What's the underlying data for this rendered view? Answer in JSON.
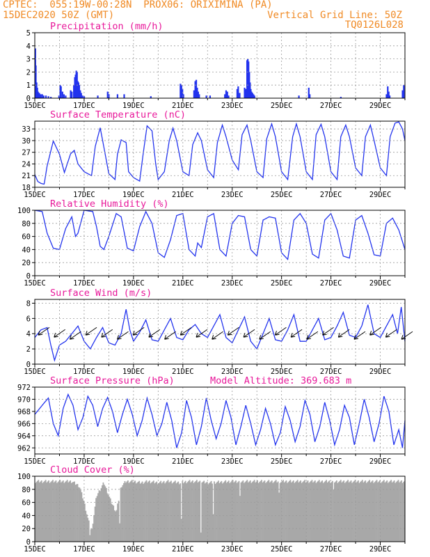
{
  "header": {
    "line1_left": "CPTEC:  055:19W-00:28N  PROX06: ORIXIMINA (PA)",
    "line2_left": "15DEC2020 50Z (GMT)",
    "line2_right": "Vertical Grid Line: 50Z",
    "line3_right": "TQ0126L028"
  },
  "colors": {
    "header": "#f08a24",
    "title": "#e8189a",
    "line": "#2233ee",
    "bar": "#2233ee",
    "cloud": "#a8a8a8",
    "grid": "#9a9a9a"
  },
  "chart_data": [
    {
      "id": "precip",
      "type": "bar",
      "title": "Precipitation (mm/h)",
      "ylim": [
        0,
        5
      ],
      "yticks": [
        "0",
        "1",
        "2",
        "3",
        "4",
        "5"
      ],
      "xticks": [
        "15DEC",
        "17DEC",
        "19DEC",
        "21DEC",
        "23DEC",
        "25DEC",
        "27DEC",
        "29DEC"
      ],
      "x_range_days": [
        0,
        15
      ],
      "events": [
        [
          0.02,
          3.8
        ],
        [
          0.04,
          2.5
        ],
        [
          0.07,
          1.2
        ],
        [
          0.1,
          0.8
        ],
        [
          0.13,
          0.5
        ],
        [
          0.18,
          0.4
        ],
        [
          0.24,
          0.3
        ],
        [
          0.3,
          0.3
        ],
        [
          0.36,
          0.2
        ],
        [
          0.45,
          0.2
        ],
        [
          0.55,
          0.15
        ],
        [
          0.65,
          0.1
        ],
        [
          0.98,
          0.2
        ],
        [
          1.03,
          1.0
        ],
        [
          1.06,
          0.9
        ],
        [
          1.12,
          0.5
        ],
        [
          1.18,
          0.3
        ],
        [
          1.25,
          0.2
        ],
        [
          1.45,
          0.6
        ],
        [
          1.5,
          0.5
        ],
        [
          1.58,
          1.0
        ],
        [
          1.62,
          1.6
        ],
        [
          1.65,
          1.8
        ],
        [
          1.68,
          2.1
        ],
        [
          1.71,
          2.0
        ],
        [
          1.74,
          1.3
        ],
        [
          1.77,
          1.2
        ],
        [
          1.8,
          1.0
        ],
        [
          1.84,
          0.6
        ],
        [
          1.88,
          0.4
        ],
        [
          1.93,
          0.2
        ],
        [
          2.0,
          0.15
        ],
        [
          2.55,
          0.2
        ],
        [
          2.95,
          0.5
        ],
        [
          3.0,
          0.3
        ],
        [
          3.35,
          0.3
        ],
        [
          3.62,
          0.3
        ],
        [
          4.7,
          0.15
        ],
        [
          5.9,
          1.1
        ],
        [
          5.94,
          1.0
        ],
        [
          5.98,
          0.7
        ],
        [
          6.02,
          0.3
        ],
        [
          6.45,
          0.6
        ],
        [
          6.5,
          1.3
        ],
        [
          6.54,
          1.4
        ],
        [
          6.58,
          0.8
        ],
        [
          6.62,
          0.5
        ],
        [
          6.66,
          0.3
        ],
        [
          6.95,
          0.2
        ],
        [
          7.1,
          0.2
        ],
        [
          7.7,
          0.3
        ],
        [
          7.75,
          0.6
        ],
        [
          7.8,
          0.5
        ],
        [
          7.85,
          0.2
        ],
        [
          8.2,
          0.7
        ],
        [
          8.24,
          0.9
        ],
        [
          8.3,
          0.4
        ],
        [
          8.5,
          0.8
        ],
        [
          8.55,
          0.7
        ],
        [
          8.6,
          2.9
        ],
        [
          8.63,
          3.0
        ],
        [
          8.66,
          2.8
        ],
        [
          8.69,
          2.0
        ],
        [
          8.72,
          1.2
        ],
        [
          8.75,
          0.7
        ],
        [
          8.78,
          0.5
        ],
        [
          8.82,
          0.4
        ],
        [
          8.86,
          0.3
        ],
        [
          8.9,
          0.2
        ],
        [
          10.7,
          0.2
        ],
        [
          11.1,
          0.8
        ],
        [
          11.14,
          0.3
        ],
        [
          12.4,
          0.1
        ],
        [
          14.25,
          0.3
        ],
        [
          14.3,
          0.9
        ],
        [
          14.34,
          0.5
        ],
        [
          14.38,
          0.2
        ],
        [
          14.9,
          0.6
        ],
        [
          14.95,
          1.0
        ]
      ]
    },
    {
      "id": "temp",
      "type": "line",
      "title": "Surface Temperature (nC)",
      "ylim": [
        18,
        35
      ],
      "yticks": [
        "18",
        "21",
        "24",
        "27",
        "30",
        "33"
      ],
      "xticks": [
        "15DEC",
        "17DEC",
        "19DEC",
        "21DEC",
        "23DEC",
        "25DEC",
        "27DEC",
        "29DEC"
      ],
      "x_range_days": [
        0,
        15
      ],
      "series": [
        {
          "t": [
            0,
            0.12,
            0.25,
            0.38,
            0.5,
            0.75,
            1.0,
            1.2,
            1.45,
            1.6,
            1.75,
            2.0,
            2.3,
            2.45,
            2.65,
            2.75,
            3.0,
            3.25,
            3.35,
            3.5,
            3.7,
            3.8,
            4.0,
            4.25,
            4.4,
            4.55,
            4.75,
            4.9,
            5.0,
            5.25,
            5.45,
            5.6,
            5.75,
            6.0,
            6.25,
            6.4,
            6.6,
            6.75,
            7.0,
            7.25,
            7.4,
            7.6,
            7.75,
            8.0,
            8.25,
            8.4,
            8.6,
            8.75,
            9.0,
            9.25,
            9.4,
            9.6,
            9.75,
            10.0,
            10.25,
            10.45,
            10.6,
            10.75,
            11.0,
            11.25,
            11.4,
            11.6,
            11.75,
            12.0,
            12.25,
            12.4,
            12.6,
            12.75,
            13.0,
            13.25,
            13.4,
            13.6,
            13.75,
            14.0,
            14.25,
            14.4,
            14.6,
            14.75,
            14.9,
            15.0
          ],
          "values": [
            21.3,
            19.5,
            19.0,
            18.8,
            23.5,
            29.9,
            26.5,
            21.8,
            26.6,
            27.5,
            24.0,
            22.0,
            21.0,
            28.5,
            33.3,
            30.0,
            21.5,
            20.0,
            26.5,
            30.2,
            29.5,
            22.0,
            20.5,
            19.6,
            27.0,
            33.8,
            32.5,
            24.0,
            20.0,
            22.0,
            30.0,
            33.2,
            30.0,
            22.0,
            21.0,
            29.0,
            32.0,
            30.0,
            22.5,
            20.5,
            29.5,
            34.0,
            31.0,
            25.0,
            22.5,
            31.5,
            34.0,
            30.0,
            22.0,
            20.5,
            30.5,
            34.3,
            31.0,
            22.0,
            20.0,
            31.0,
            34.3,
            31.0,
            22.0,
            20.0,
            31.5,
            34.2,
            31.0,
            22.0,
            20.0,
            31.0,
            34.0,
            31.0,
            23.0,
            21.0,
            31.0,
            34.0,
            30.0,
            23.0,
            21.0,
            31.0,
            34.5,
            34.8,
            33.0,
            30.0
          ]
        }
      ]
    },
    {
      "id": "humidity",
      "type": "line",
      "title": "Relative Humidity (%)",
      "ylim": [
        0,
        100
      ],
      "yticks": [
        "0",
        "20",
        "40",
        "60",
        "80",
        "100"
      ],
      "xticks": [
        "15DEC",
        "17DEC",
        "19DEC",
        "21DEC",
        "23DEC",
        "25DEC",
        "27DEC",
        "29DEC"
      ],
      "x_range_days": [
        0,
        15
      ],
      "series": [
        {
          "t": [
            0,
            0.3,
            0.5,
            0.75,
            1.0,
            1.25,
            1.5,
            1.65,
            1.75,
            2.0,
            2.35,
            2.5,
            2.65,
            2.8,
            3.0,
            3.3,
            3.5,
            3.75,
            4.0,
            4.25,
            4.5,
            4.75,
            5.0,
            5.25,
            5.5,
            5.75,
            6.0,
            6.25,
            6.5,
            6.6,
            6.75,
            7.0,
            7.25,
            7.5,
            7.75,
            8.0,
            8.25,
            8.5,
            8.75,
            9.0,
            9.25,
            9.5,
            9.75,
            10.0,
            10.25,
            10.5,
            10.75,
            11.0,
            11.25,
            11.5,
            11.75,
            12.0,
            12.25,
            12.5,
            12.75,
            13.0,
            13.25,
            13.5,
            13.75,
            14.0,
            14.25,
            14.5,
            14.75,
            15.0
          ],
          "values": [
            100,
            98,
            65,
            42,
            40,
            72,
            90,
            60,
            65,
            100,
            98,
            75,
            45,
            40,
            60,
            95,
            90,
            42,
            38,
            75,
            98,
            80,
            35,
            28,
            55,
            92,
            95,
            40,
            30,
            50,
            43,
            90,
            95,
            40,
            30,
            80,
            92,
            90,
            40,
            30,
            85,
            90,
            88,
            35,
            25,
            85,
            95,
            80,
            33,
            27,
            85,
            95,
            70,
            30,
            27,
            85,
            92,
            65,
            32,
            30,
            80,
            88,
            70,
            40
          ]
        }
      ]
    },
    {
      "id": "wind",
      "type": "line",
      "title": "Surface Wind (m/s)",
      "ylim": [
        0,
        8.5
      ],
      "yticks": [
        "0",
        "2",
        "4",
        "6",
        "8"
      ],
      "xticks": [
        "15DEC",
        "17DEC",
        "19DEC",
        "21DEC",
        "23DEC",
        "25DEC",
        "27DEC",
        "29DEC"
      ],
      "x_range_days": [
        0,
        15
      ],
      "arrow_y": 4,
      "arrow_count": 24,
      "series": [
        {
          "t": [
            0,
            0.25,
            0.5,
            0.65,
            0.8,
            1.0,
            1.25,
            1.5,
            1.75,
            2.0,
            2.25,
            2.5,
            2.75,
            3.0,
            3.25,
            3.5,
            3.7,
            3.85,
            4.0,
            4.25,
            4.5,
            4.75,
            5.0,
            5.25,
            5.5,
            5.75,
            6.0,
            6.25,
            6.5,
            6.75,
            7.0,
            7.25,
            7.5,
            7.75,
            8.0,
            8.25,
            8.5,
            8.75,
            9.0,
            9.25,
            9.5,
            9.75,
            10.0,
            10.25,
            10.5,
            10.75,
            11.0,
            11.25,
            11.5,
            11.75,
            12.0,
            12.25,
            12.5,
            12.75,
            13.0,
            13.25,
            13.5,
            13.75,
            14.0,
            14.25,
            14.5,
            14.7,
            14.85,
            15.0
          ],
          "values": [
            3.5,
            4.5,
            4.8,
            2.5,
            0.5,
            2.5,
            3.0,
            4.0,
            5.0,
            3.0,
            2.0,
            3.5,
            4.8,
            2.8,
            2.5,
            4.0,
            7.2,
            4.5,
            3.0,
            4.2,
            5.8,
            3.2,
            3.0,
            4.5,
            6.0,
            3.5,
            3.2,
            4.5,
            5.2,
            4.0,
            3.5,
            5.0,
            6.5,
            3.5,
            2.8,
            4.5,
            6.2,
            3.0,
            2.0,
            4.0,
            6.0,
            3.2,
            3.0,
            4.5,
            6.5,
            3.0,
            3.0,
            4.5,
            6.0,
            3.2,
            3.5,
            5.0,
            6.8,
            3.8,
            3.5,
            5.0,
            7.8,
            4.0,
            3.5,
            5.0,
            6.5,
            4.0,
            7.5,
            3.0
          ]
        }
      ]
    },
    {
      "id": "pressure",
      "type": "line",
      "title": "Surface Pressure (hPa)",
      "annotation": "Model Altitude: 369.683 m",
      "ylim": [
        961,
        972
      ],
      "yticks": [
        "962",
        "964",
        "966",
        "968",
        "970",
        "972"
      ],
      "xticks": [
        "15DEC",
        "17DEC",
        "19DEC",
        "21DEC",
        "23DEC",
        "25DEC",
        "27DEC",
        "29DEC"
      ],
      "x_range_days": [
        0,
        15
      ],
      "series": [
        {
          "t": [
            0,
            0.2,
            0.4,
            0.55,
            0.75,
            0.95,
            1.15,
            1.35,
            1.55,
            1.75,
            1.95,
            2.15,
            2.35,
            2.55,
            2.75,
            2.95,
            3.15,
            3.35,
            3.55,
            3.75,
            3.95,
            4.15,
            4.35,
            4.55,
            4.75,
            4.95,
            5.15,
            5.35,
            5.55,
            5.75,
            5.95,
            6.15,
            6.35,
            6.55,
            6.75,
            6.95,
            7.15,
            7.35,
            7.55,
            7.75,
            7.95,
            8.15,
            8.35,
            8.55,
            8.75,
            8.95,
            9.15,
            9.35,
            9.55,
            9.75,
            9.95,
            10.15,
            10.35,
            10.55,
            10.75,
            10.95,
            11.15,
            11.35,
            11.55,
            11.75,
            11.95,
            12.15,
            12.35,
            12.55,
            12.75,
            12.95,
            13.15,
            13.35,
            13.55,
            13.75,
            13.95,
            14.15,
            14.35,
            14.55,
            14.75,
            14.9,
            15.0
          ],
          "values": [
            967.5,
            968.5,
            969.5,
            970.2,
            966.0,
            964.0,
            968.5,
            970.8,
            969.0,
            965.0,
            967.0,
            970.5,
            969.0,
            965.5,
            968.5,
            970.3,
            968.0,
            964.5,
            967.5,
            970.0,
            967.5,
            964.0,
            966.5,
            970.2,
            967.5,
            964.0,
            966.0,
            969.5,
            966.5,
            962.0,
            964.5,
            969.8,
            967.0,
            962.5,
            965.5,
            970.2,
            966.5,
            963.5,
            966.0,
            969.8,
            967.0,
            962.5,
            965.5,
            969.0,
            966.0,
            962.5,
            965.0,
            968.5,
            966.0,
            962.5,
            964.5,
            968.8,
            966.5,
            963.0,
            965.5,
            969.8,
            967.5,
            963.0,
            965.5,
            969.5,
            966.5,
            962.5,
            965.0,
            969.0,
            967.0,
            962.5,
            966.0,
            970.0,
            967.0,
            963.0,
            966.0,
            970.5,
            968.0,
            962.5,
            965.0,
            962.0,
            966.5
          ]
        }
      ]
    },
    {
      "id": "cloud",
      "type": "area",
      "title": "Cloud Cover (%)",
      "ylim": [
        0,
        100
      ],
      "yticks": [
        "0",
        "20",
        "40",
        "60",
        "80",
        "100"
      ],
      "xticks": [
        "15DEC",
        "17DEC",
        "19DEC",
        "21DEC",
        "23DEC",
        "25DEC",
        "27DEC",
        "29DEC"
      ],
      "x_range_days": [
        0,
        15
      ],
      "series": [
        {
          "t": [
            0,
            1.5,
            1.8,
            2.0,
            2.15,
            2.3,
            2.5,
            2.8,
            3.1,
            3.3,
            3.5,
            3.7,
            4.0,
            4.3,
            4.6,
            5.0,
            5.4,
            5.9,
            6.2,
            6.6,
            7.0,
            8.0,
            9.0,
            10.0,
            11.0,
            12.0,
            13.0,
            14.0,
            15.0
          ],
          "values": [
            92,
            92,
            85,
            60,
            35,
            15,
            70,
            90,
            60,
            45,
            85,
            92,
            92,
            90,
            92,
            90,
            92,
            90,
            92,
            92,
            90,
            92,
            92,
            92,
            92,
            92,
            92,
            92,
            92
          ],
          "dips": [
            [
              2.23,
              10
            ],
            [
              3.45,
              28
            ],
            [
              5.95,
              35
            ],
            [
              6.72,
              14
            ],
            [
              7.22,
              42
            ],
            [
              8.3,
              70
            ],
            [
              9.9,
              75
            ],
            [
              12.1,
              80
            ]
          ]
        }
      ]
    }
  ]
}
